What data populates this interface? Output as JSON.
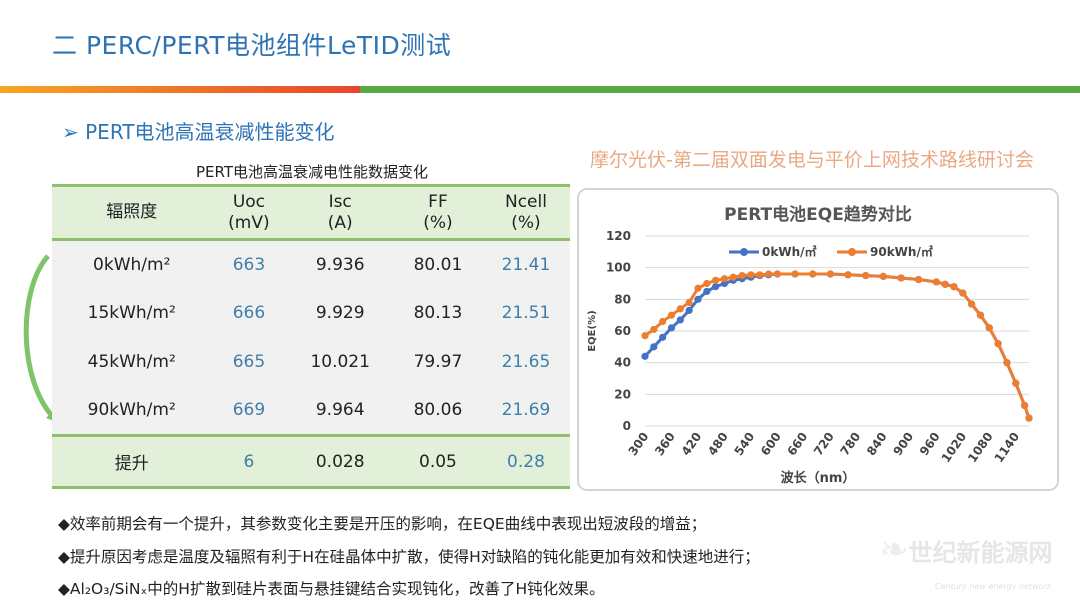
{
  "slide": {
    "title": "二  PERC/PERT电池组件LeTID测试",
    "subtitle_marker": "➢",
    "subtitle": "PERT电池高温衰减性能变化",
    "bar_colors": {
      "left": "#e8452c",
      "right": "#5aa843"
    }
  },
  "table": {
    "title": "PERT电池高温衰减电性能数据变化",
    "headers": [
      [
        "辐照度",
        ""
      ],
      [
        "Uoc",
        "(mV)"
      ],
      [
        "Isc",
        "(A)"
      ],
      [
        "FF",
        "(%)"
      ],
      [
        "Ncell",
        "(%)"
      ]
    ],
    "rows": [
      [
        "0kWh/m²",
        "663",
        "9.936",
        "80.01",
        "21.41"
      ],
      [
        "15kWh/m²",
        "666",
        "9.929",
        "80.13",
        "21.51"
      ],
      [
        "45kWh/m²",
        "665",
        "10.021",
        "79.97",
        "21.65"
      ],
      [
        "90kWh/m²",
        "669",
        "9.964",
        "80.06",
        "21.69"
      ]
    ],
    "footer": [
      "提升",
      "6",
      "0.028",
      "0.05",
      "0.28"
    ]
  },
  "bullets": [
    "效率前期会有一个提升，其参数变化主要是开压的影响，在EQE曲线中表现出短波段的增益；",
    "提升原因考虑是温度及辐照有利于H在硅晶体中扩散，使得H对缺陷的钝化能更加有效和快速地进行；",
    "Al₂O₃/SiNₓ中的H扩散到硅片表面与悬挂键结合实现钝化，改善了H钝化效果。"
  ],
  "watermark": "摩尔光伏-第二届双面发电与平价上网技术路线研讨会",
  "logo": {
    "name": "世纪新能源网",
    "tagline": "Century new energy network"
  },
  "chart_data": {
    "type": "line",
    "title": "PERT电池EQE趋势对比",
    "xlabel": "波长（nm）",
    "ylabel": "EQE(%)",
    "ylim": [
      0,
      120
    ],
    "yticks": [
      0,
      20,
      40,
      60,
      80,
      100,
      120
    ],
    "xticks": [
      300,
      360,
      420,
      480,
      540,
      600,
      660,
      720,
      780,
      840,
      900,
      960,
      1020,
      1080,
      1140
    ],
    "grid": true,
    "legend": "top",
    "x": [
      300,
      320,
      340,
      360,
      380,
      400,
      420,
      440,
      460,
      480,
      500,
      520,
      540,
      560,
      580,
      600,
      640,
      680,
      720,
      760,
      800,
      840,
      880,
      920,
      960,
      980,
      1000,
      1020,
      1040,
      1060,
      1080,
      1100,
      1120,
      1140,
      1160,
      1170
    ],
    "series": [
      {
        "name": "0kWh/㎡",
        "color": "#4472c4",
        "values": [
          44,
          50,
          56,
          62,
          67,
          73,
          80,
          85,
          88,
          90,
          92,
          93,
          94,
          95,
          95.5,
          96,
          96,
          96,
          96,
          95.5,
          95,
          94.5,
          93.5,
          92.5,
          91,
          89.5,
          88,
          84,
          77,
          70,
          62,
          52,
          40,
          27,
          13,
          5
        ]
      },
      {
        "name": "90kWh/㎡",
        "color": "#ed7d31",
        "values": [
          57,
          61,
          66,
          70,
          74,
          78,
          87,
          90,
          92,
          93,
          94,
          95,
          95.5,
          95.5,
          96,
          96,
          96,
          96,
          96,
          95.5,
          95,
          94.5,
          93.5,
          92.5,
          91,
          89.5,
          88,
          84,
          77,
          70,
          62,
          52,
          40,
          27,
          13,
          5
        ]
      }
    ]
  }
}
